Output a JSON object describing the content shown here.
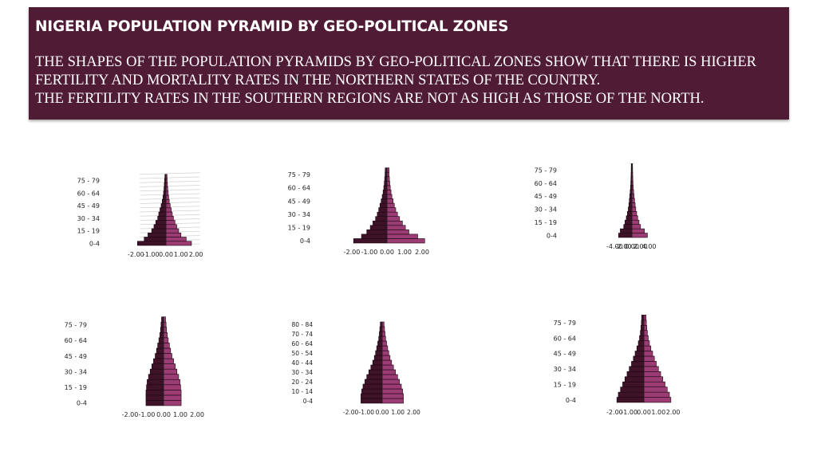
{
  "header": {
    "title": "NIGERIA POPULATION PYRAMID BY GEO-POLITICAL ZONES",
    "description": [
      "THE SHAPES OF THE POPULATION PYRAMIDS BY GEO-POLITICAL ZONES SHOW THAT THERE IS HIGHER",
      "FERTILITY AND MORTALITY RATES IN THE NORTHERN STATES OF THE COUNTRY.",
      "THE FERTILITY RATES IN THE SOUTHERN REGIONS ARE NOT AS HIGH AS THOSE OF THE NORTH."
    ],
    "background": "#4f1b35"
  },
  "colors": {
    "male": "#3f1327",
    "female": "#9b3d74",
    "edge": "#1a0610"
  },
  "chart_data": [
    {
      "type": "bar",
      "orientation": "horizontal-pyramid",
      "age_groups": 17,
      "y_tick_labels": [
        "0-4",
        "15 - 19",
        "30 - 34",
        "45 - 49",
        "60 - 64",
        "75 - 79"
      ],
      "y_tick_groups": [
        0,
        3,
        6,
        9,
        12,
        15
      ],
      "x_ticks": [
        -2,
        -1,
        0,
        1,
        2
      ],
      "x_tick_labels": [
        "-2.00",
        "-1.00",
        "0.00",
        "1.00",
        "2.00"
      ],
      "xlim": [
        -2,
        2
      ],
      "grid": "horizontal",
      "male": [
        -1.9,
        -1.45,
        -1.2,
        -0.95,
        -0.8,
        -0.68,
        -0.55,
        -0.48,
        -0.4,
        -0.32,
        -0.25,
        -0.2,
        -0.16,
        -0.13,
        -0.11,
        -0.09,
        -0.07
      ],
      "female": [
        1.7,
        1.35,
        1.0,
        0.85,
        0.72,
        0.6,
        0.5,
        0.42,
        0.35,
        0.28,
        0.22,
        0.18,
        0.15,
        0.12,
        0.1,
        0.08,
        0.07
      ]
    },
    {
      "type": "bar",
      "orientation": "horizontal-pyramid",
      "age_groups": 17,
      "y_tick_labels": [
        "0-4",
        "15 - 19",
        "30 - 34",
        "45 - 49",
        "60 - 64",
        "75 - 79"
      ],
      "y_tick_groups": [
        0,
        3,
        6,
        9,
        12,
        15
      ],
      "x_ticks": [
        -2,
        -1,
        0,
        1,
        2
      ],
      "x_tick_labels": [
        "-2.00",
        "-1.00",
        "0.00",
        "1.00",
        "2.00"
      ],
      "xlim": [
        -2,
        2
      ],
      "grid": "none",
      "male": [
        -1.9,
        -1.45,
        -1.15,
        -0.95,
        -0.8,
        -0.65,
        -0.55,
        -0.47,
        -0.4,
        -0.33,
        -0.27,
        -0.22,
        -0.18,
        -0.15,
        -0.13,
        -0.11,
        -0.1
      ],
      "female": [
        2.15,
        1.75,
        1.25,
        1.05,
        0.88,
        0.72,
        0.6,
        0.5,
        0.42,
        0.35,
        0.28,
        0.23,
        0.19,
        0.16,
        0.14,
        0.12,
        0.12
      ]
    },
    {
      "type": "bar",
      "orientation": "horizontal-pyramid",
      "age_groups": 17,
      "y_tick_labels": [
        "0-4",
        "15 - 19",
        "30 - 34",
        "45 - 49",
        "60 - 64",
        "75 - 79"
      ],
      "y_tick_groups": [
        0,
        3,
        6,
        9,
        12,
        15
      ],
      "x_ticks": [
        -4,
        -2,
        0,
        2,
        4
      ],
      "x_tick_labels": [
        "-4.00",
        "-2.00",
        "0.00",
        "2.00",
        "4.00"
      ],
      "xlim": [
        -4,
        4
      ],
      "grid": "none",
      "male": [
        -3.1,
        -2.7,
        -1.9,
        -1.6,
        -1.3,
        -1.05,
        -0.85,
        -0.7,
        -0.6,
        -0.5,
        -0.4,
        -0.32,
        -0.26,
        -0.22,
        -0.19,
        -0.17,
        -0.15
      ],
      "female": [
        3.6,
        2.9,
        2.0,
        1.65,
        1.35,
        1.1,
        0.9,
        0.75,
        0.62,
        0.5,
        0.4,
        0.32,
        0.26,
        0.22,
        0.19,
        0.17,
        0.15
      ]
    },
    {
      "type": "bar",
      "orientation": "horizontal-pyramid",
      "age_groups": 17,
      "y_tick_labels": [
        "0-4",
        "15 - 19",
        "30 - 34",
        "45 - 49",
        "60 - 64",
        "75 - 79"
      ],
      "y_tick_groups": [
        0,
        3,
        6,
        9,
        12,
        15
      ],
      "x_ticks": [
        -2,
        -1,
        0,
        1,
        2
      ],
      "x_tick_labels": [
        "-2.00",
        "-1.00",
        "0.00",
        "1.00",
        "2.00"
      ],
      "xlim": [
        -2,
        2
      ],
      "grid": "none",
      "male": [
        -1.05,
        -1.05,
        -1.05,
        -1.02,
        -0.98,
        -0.9,
        -0.8,
        -0.7,
        -0.6,
        -0.5,
        -0.42,
        -0.35,
        -0.28,
        -0.22,
        -0.18,
        -0.15,
        -0.12
      ],
      "female": [
        1.05,
        1.05,
        1.05,
        1.02,
        0.98,
        0.9,
        0.8,
        0.7,
        0.6,
        0.5,
        0.42,
        0.35,
        0.28,
        0.22,
        0.18,
        0.15,
        0.12
      ]
    },
    {
      "type": "bar",
      "orientation": "horizontal-pyramid",
      "age_groups": 17,
      "y_tick_labels": [
        "0-4",
        "10 - 14",
        "20 - 24",
        "30 - 34",
        "40 - 44",
        "50 - 54",
        "60 - 64",
        "70 - 74",
        "80 - 84"
      ],
      "y_tick_groups": [
        0,
        2,
        4,
        6,
        8,
        10,
        12,
        14,
        16
      ],
      "x_ticks": [
        -2,
        -1,
        0,
        1,
        2
      ],
      "x_tick_labels": [
        "-2.00",
        "-1.00",
        "0.00",
        "1.00",
        "2.00"
      ],
      "xlim": [
        -2,
        2
      ],
      "grid": "none",
      "male": [
        -1.35,
        -1.35,
        -1.3,
        -1.22,
        -1.1,
        -0.98,
        -0.85,
        -0.72,
        -0.6,
        -0.5,
        -0.42,
        -0.35,
        -0.28,
        -0.22,
        -0.18,
        -0.15,
        -0.12
      ],
      "female": [
        1.35,
        1.35,
        1.3,
        1.22,
        1.1,
        0.98,
        0.85,
        0.72,
        0.6,
        0.5,
        0.42,
        0.35,
        0.28,
        0.22,
        0.18,
        0.15,
        0.12
      ]
    },
    {
      "type": "bar",
      "orientation": "horizontal-pyramid",
      "age_groups": 17,
      "y_tick_labels": [
        "0-4",
        "15 - 19",
        "30 - 34",
        "45 - 49",
        "60 - 64",
        "75 - 79"
      ],
      "y_tick_groups": [
        0,
        3,
        6,
        9,
        12,
        15
      ],
      "x_ticks": [
        -2,
        -1,
        0,
        1,
        2
      ],
      "x_tick_labels": [
        "-2.00",
        "-1.00",
        "0.00",
        "1.00",
        "2.00"
      ],
      "xlim": [
        -2,
        2
      ],
      "grid": "none",
      "male": [
        -1.85,
        -1.75,
        -1.6,
        -1.45,
        -1.3,
        -1.15,
        -1.0,
        -0.85,
        -0.72,
        -0.6,
        -0.48,
        -0.38,
        -0.3,
        -0.24,
        -0.2,
        -0.17,
        -0.15
      ],
      "female": [
        1.85,
        1.75,
        1.6,
        1.45,
        1.3,
        1.15,
        1.0,
        0.85,
        0.72,
        0.6,
        0.48,
        0.38,
        0.3,
        0.24,
        0.2,
        0.17,
        0.15
      ]
    }
  ]
}
